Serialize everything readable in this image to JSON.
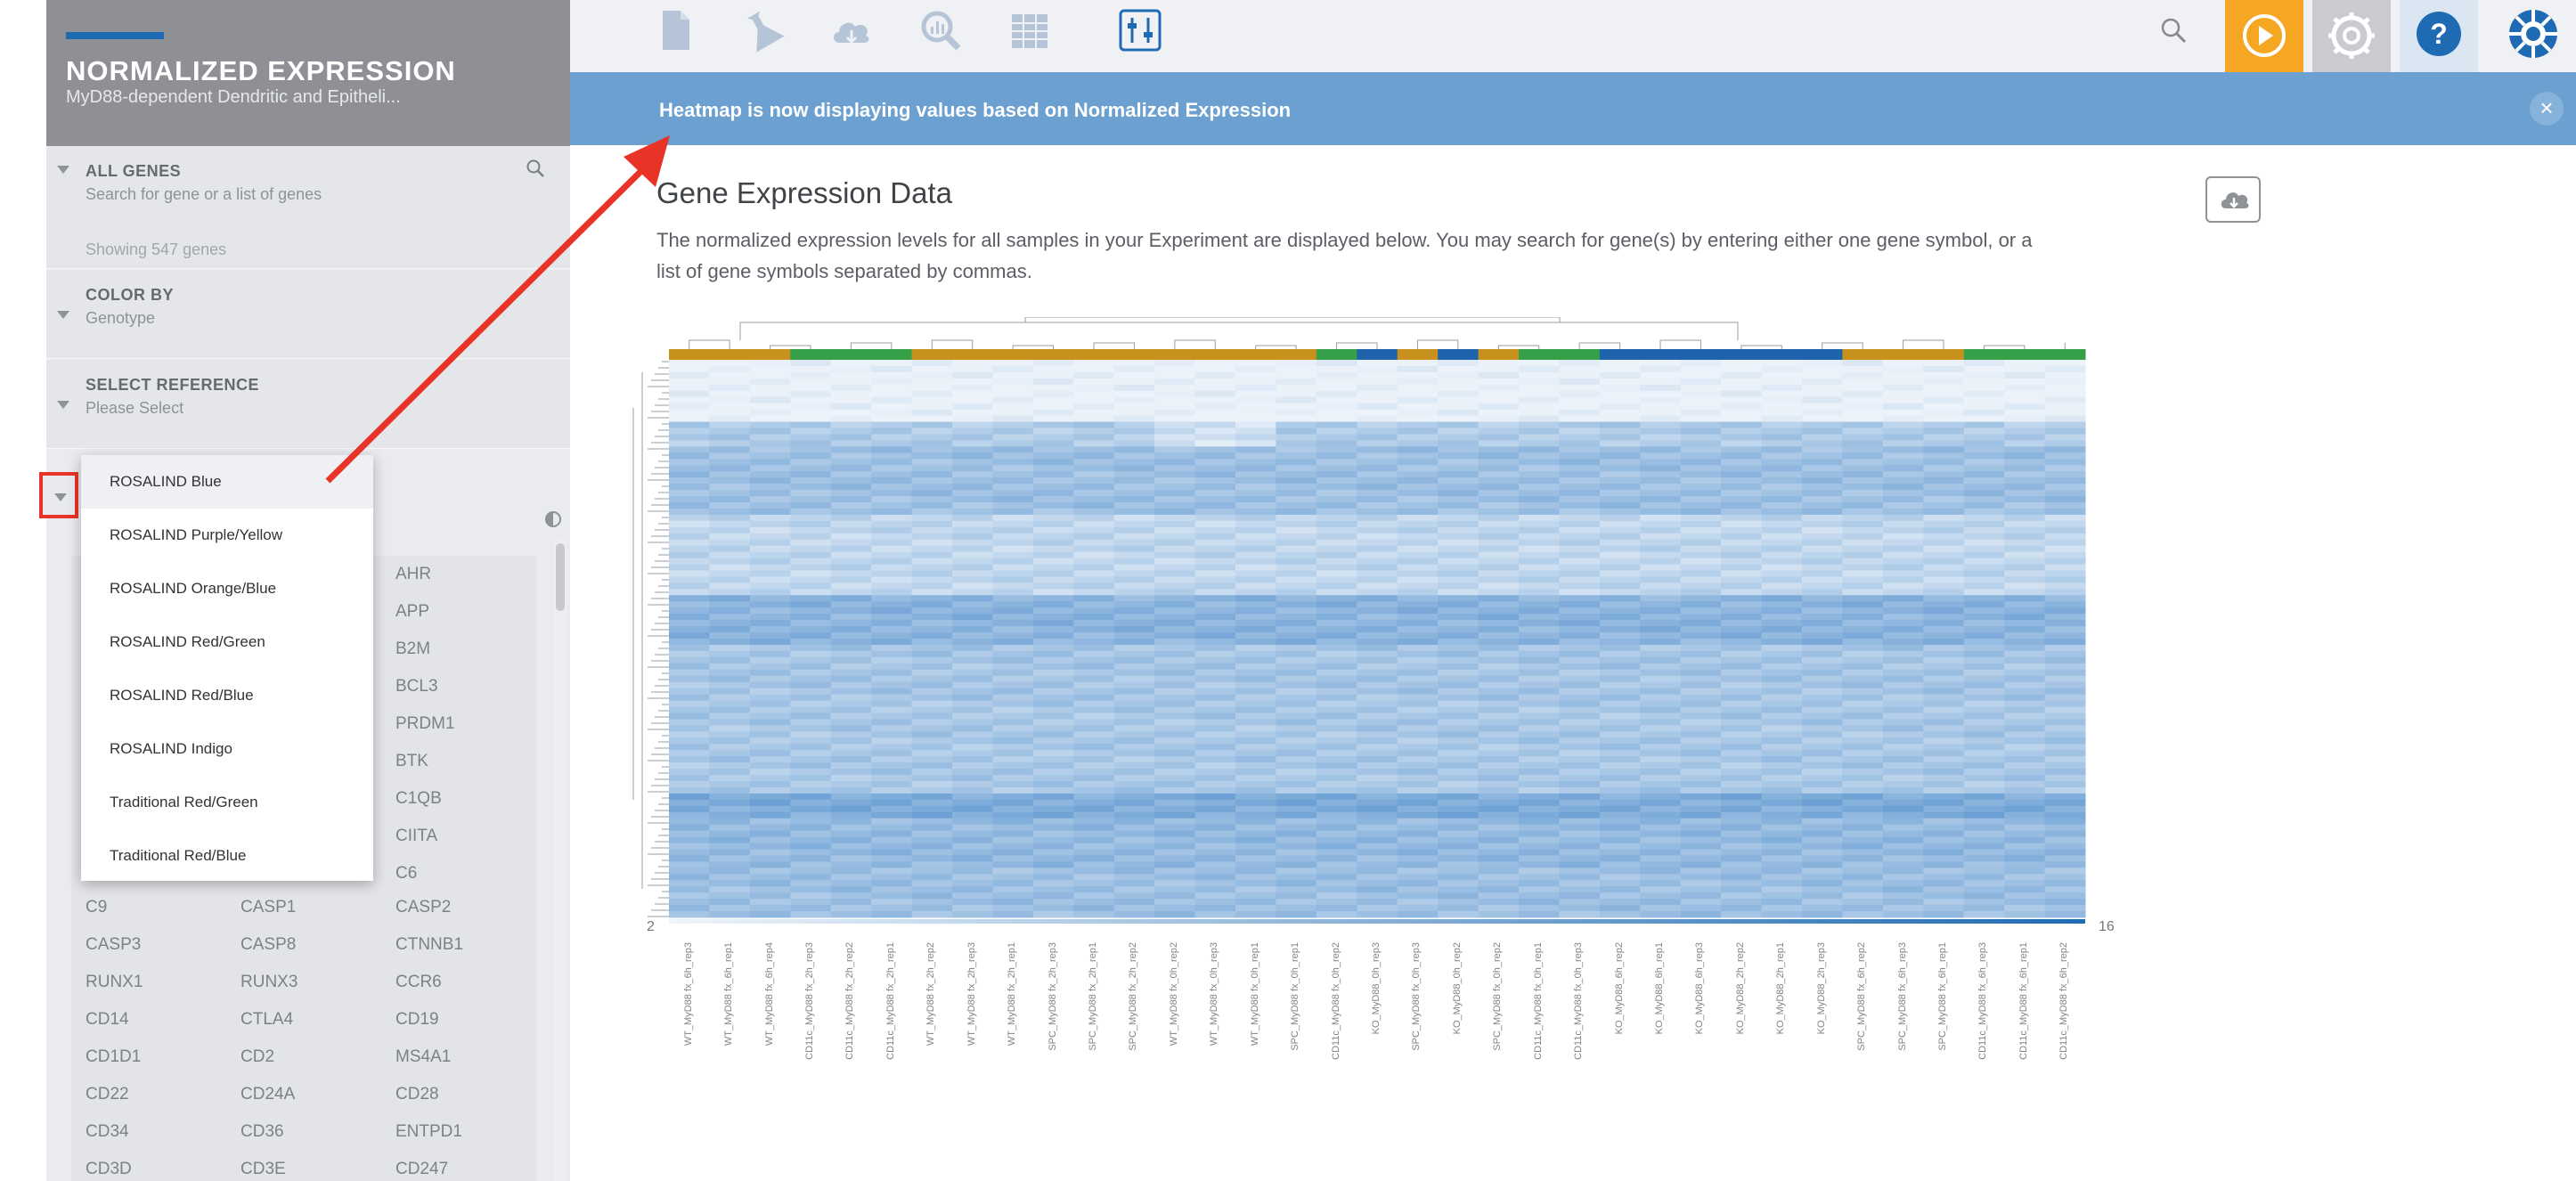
{
  "sidebar": {
    "title": "NORMALIZED EXPRESSION",
    "subtitle": "MyD88-dependent Dendritic and Epitheli...",
    "all_genes": {
      "label": "ALL GENES",
      "placeholder": "Search for gene or a list of genes",
      "count_text": "Showing 547 genes"
    },
    "color_by": {
      "label": "COLOR BY",
      "value": "Genotype"
    },
    "select_reference": {
      "label": "SELECT REFERENCE",
      "value": "Please Select"
    },
    "color_scheme_options": [
      "ROSALIND Blue",
      "ROSALIND Purple/Yellow",
      "ROSALIND Orange/Blue",
      "ROSALIND Red/Green",
      "ROSALIND Red/Blue",
      "ROSALIND Indigo",
      "Traditional Red/Green",
      "Traditional Red/Blue"
    ],
    "selected_color_scheme": "ROSALIND Blue",
    "genes_partial": [
      "AHR",
      "APP",
      "B2M",
      "BCL3",
      "PRDM1",
      "BTK",
      "C1QB",
      "CIITA",
      "C6"
    ],
    "genes_grid": [
      [
        "C9",
        "CASP1",
        "CASP2"
      ],
      [
        "CASP3",
        "CASP8",
        "CTNNB1"
      ],
      [
        "RUNX1",
        "RUNX3",
        "CCR6"
      ],
      [
        "CD14",
        "CTLA4",
        "CD19"
      ],
      [
        "CD1D1",
        "CD2",
        "MS4A1"
      ],
      [
        "CD22",
        "CD24A",
        "CD28"
      ],
      [
        "CD34",
        "CD36",
        "ENTPD1"
      ],
      [
        "CD3D",
        "CD3E",
        "CD247"
      ]
    ]
  },
  "banner": {
    "text": "Heatmap is now displaying values based on Normalized Expression",
    "close_icon": "×"
  },
  "main": {
    "title": "Gene Expression Data",
    "description": "The normalized expression levels for all samples in your Experiment are displayed below. You may search for gene(s) by entering either one gene symbol, or a list of gene symbols separated by commas."
  },
  "colors": {
    "accent_orange": "#f5a623",
    "help_blue": "#1f6bb3",
    "banner_blue": "#6ba0d0",
    "genotype_wt": "#c8901c",
    "genotype_ko": "#1f63ad",
    "genotype_spc": "#c8901c",
    "genotype_cd11c": "#35a047"
  },
  "toolbar_icons": [
    "document-icon",
    "flask-icon",
    "cloud-download-icon",
    "analysis-search-icon",
    "table-icon",
    "sliders-icon"
  ],
  "chart_data": {
    "type": "heatmap",
    "legend_min": "2",
    "legend_max": "16",
    "samples": [
      "WT_MyD88 fx_6h_rep3",
      "WT_MyD88 fx_6h_rep1",
      "WT_MyD88 fx_6h_rep4",
      "CD11c_MyD88 fx_2h_rep3",
      "CD11c_MyD88 fx_2h_rep2",
      "CD11c_MyD88 fx_2h_rep1",
      "WT_MyD88 fx_2h_rep2",
      "WT_MyD88 fx_2h_rep3",
      "WT_MyD88 fx_2h_rep1",
      "SPC_MyD88 fx_2h_rep3",
      "SPC_MyD88 fx_2h_rep1",
      "SPC_MyD88 fx_2h_rep2",
      "WT_MyD88 fx_0h_rep2",
      "WT_MyD88 fx_0h_rep3",
      "WT_MyD88 fx_0h_rep1",
      "SPC_MyD88 fx_0h_rep1",
      "CD11c_MyD88 fx_0h_rep2",
      "KO_MyD88_0h_rep3",
      "SPC_MyD88 fx_0h_rep3",
      "KO_MyD88_0h_rep2",
      "SPC_MyD88 fx_0h_rep2",
      "CD11c_MyD88 fx_0h_rep1",
      "CD11c_MyD88 fx_0h_rep3",
      "KO_MyD88_6h_rep2",
      "KO_MyD88_6h_rep1",
      "KO_MyD88_6h_rep3",
      "KO_MyD88_2h_rep2",
      "KO_MyD88_2h_rep1",
      "KO_MyD88_2h_rep3",
      "SPC_MyD88 fx_6h_rep2",
      "SPC_MyD88 fx_6h_rep3",
      "SPC_MyD88 fx_6h_rep1",
      "CD11c_MyD88 fx_6h_rep3",
      "CD11c_MyD88 fx_6h_rep1",
      "CD11c_MyD88 fx_6h_rep2"
    ],
    "genotypes": [
      "WT",
      "WT",
      "WT",
      "CD11c",
      "CD11c",
      "CD11c",
      "WT",
      "WT",
      "WT",
      "SPC",
      "SPC",
      "SPC",
      "WT",
      "WT",
      "WT",
      "SPC",
      "CD11c",
      "KO",
      "SPC",
      "KO",
      "SPC",
      "CD11c",
      "CD11c",
      "KO",
      "KO",
      "KO",
      "KO",
      "KO",
      "KO",
      "SPC",
      "SPC",
      "SPC",
      "CD11c",
      "CD11c",
      "CD11c"
    ]
  }
}
